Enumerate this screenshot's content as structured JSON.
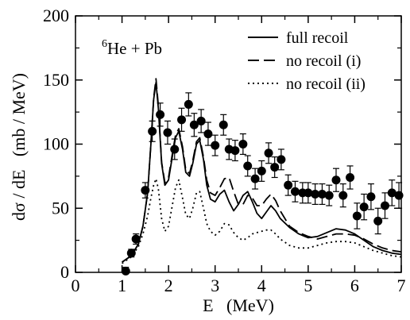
{
  "chart_data": {
    "type": "line",
    "title": "",
    "annotation": {
      "sup": "6",
      "text": "He + Pb"
    },
    "xlabel": "E   (MeV)",
    "ylabel": "dσ / dE   (mb / MeV)",
    "xlim": [
      0,
      7
    ],
    "ylim": [
      0,
      200
    ],
    "xticks": [
      0,
      1,
      2,
      3,
      4,
      5,
      6,
      7
    ],
    "yticks": [
      0,
      50,
      100,
      150,
      200
    ],
    "legend_position": "top-right",
    "series": [
      {
        "name": "full recoil",
        "style": "solid",
        "x": [
          1.0,
          1.2,
          1.35,
          1.45,
          1.55,
          1.62,
          1.68,
          1.73,
          1.78,
          1.85,
          1.92,
          2.0,
          2.08,
          2.15,
          2.22,
          2.3,
          2.37,
          2.45,
          2.52,
          2.6,
          2.67,
          2.75,
          2.82,
          2.9,
          3.0,
          3.1,
          3.2,
          3.3,
          3.4,
          3.5,
          3.6,
          3.7,
          3.8,
          3.9,
          4.0,
          4.1,
          4.2,
          4.3,
          4.4,
          4.6,
          4.8,
          5.0,
          5.2,
          5.4,
          5.6,
          5.8,
          6.0,
          6.2,
          6.4,
          6.6,
          6.8,
          7.0
        ],
        "y": [
          8,
          13,
          22,
          36,
          62,
          100,
          135,
          148,
          128,
          85,
          68,
          72,
          90,
          105,
          110,
          96,
          78,
          75,
          85,
          100,
          103,
          88,
          68,
          57,
          55,
          61,
          64,
          55,
          48,
          53,
          60,
          63,
          55,
          46,
          42,
          47,
          52,
          48,
          42,
          35,
          30,
          27,
          28,
          31,
          34,
          33,
          30,
          25,
          20,
          17,
          15,
          14
        ]
      },
      {
        "name": "no recoil (i)",
        "style": "dashed",
        "x": [
          1.0,
          1.2,
          1.35,
          1.45,
          1.55,
          1.62,
          1.68,
          1.73,
          1.78,
          1.85,
          1.92,
          2.0,
          2.08,
          2.15,
          2.22,
          2.3,
          2.37,
          2.45,
          2.52,
          2.6,
          2.67,
          2.75,
          2.82,
          2.9,
          3.0,
          3.1,
          3.2,
          3.3,
          3.4,
          3.5,
          3.6,
          3.7,
          3.8,
          3.9,
          4.0,
          4.1,
          4.2,
          4.3,
          4.4,
          4.6,
          4.8,
          5.0,
          5.2,
          5.4,
          5.6,
          5.8,
          6.0,
          6.2,
          6.4,
          6.6,
          6.8,
          7.0
        ],
        "y": [
          8,
          13,
          22,
          36,
          62,
          100,
          136,
          151,
          130,
          86,
          70,
          74,
          92,
          107,
          112,
          98,
          80,
          77,
          87,
          102,
          105,
          90,
          72,
          62,
          60,
          66,
          73,
          74,
          63,
          53,
          53,
          60,
          58,
          52,
          52,
          57,
          61,
          56,
          48,
          36,
          31,
          28,
          26,
          28,
          30,
          30,
          29,
          26,
          22,
          19,
          17,
          16
        ]
      },
      {
        "name": "no recoil (ii)",
        "style": "dotted",
        "x": [
          1.0,
          1.2,
          1.35,
          1.45,
          1.55,
          1.62,
          1.68,
          1.73,
          1.78,
          1.85,
          1.92,
          2.0,
          2.08,
          2.15,
          2.22,
          2.3,
          2.37,
          2.45,
          2.52,
          2.6,
          2.67,
          2.75,
          2.82,
          2.9,
          3.0,
          3.1,
          3.2,
          3.3,
          3.4,
          3.5,
          3.6,
          3.7,
          3.8,
          3.9,
          4.0,
          4.1,
          4.2,
          4.3,
          4.4,
          4.6,
          4.8,
          5.0,
          5.2,
          5.4,
          5.6,
          5.8,
          6.0,
          6.2,
          6.4,
          6.6,
          6.8,
          7.0
        ],
        "y": [
          7,
          12,
          20,
          30,
          44,
          58,
          68,
          73,
          65,
          42,
          32,
          36,
          52,
          66,
          72,
          58,
          45,
          42,
          50,
          62,
          63,
          50,
          38,
          32,
          29,
          32,
          38,
          37,
          31,
          27,
          25,
          27,
          30,
          31,
          32,
          33,
          33,
          30,
          26,
          21,
          19,
          19,
          21,
          23,
          24,
          24,
          23,
          20,
          17,
          15,
          13,
          12
        ]
      }
    ],
    "data_points": {
      "name": "data",
      "x": [
        1.08,
        1.2,
        1.3,
        1.5,
        1.65,
        1.82,
        1.98,
        2.13,
        2.28,
        2.43,
        2.55,
        2.7,
        2.85,
        3.0,
        3.18,
        3.3,
        3.43,
        3.6,
        3.7,
        3.86,
        4.0,
        4.15,
        4.28,
        4.42,
        4.57,
        4.72,
        4.88,
        5.0,
        5.15,
        5.3,
        5.45,
        5.6,
        5.75,
        5.9,
        6.05,
        6.2,
        6.35,
        6.5,
        6.65,
        6.8,
        6.95
      ],
      "y": [
        1,
        15,
        26,
        64,
        110,
        123,
        109,
        96,
        119,
        131,
        115,
        118,
        108,
        99,
        115,
        96,
        95,
        100,
        83,
        73,
        79,
        93,
        82,
        88,
        68,
        63,
        62,
        62,
        61,
        61,
        60,
        72,
        60,
        74,
        44,
        51,
        59,
        40,
        52,
        62,
        60
      ],
      "err": [
        3,
        3,
        4,
        6,
        8,
        9,
        9,
        8,
        9,
        9,
        9,
        9,
        9,
        8,
        8,
        8,
        8,
        8,
        8,
        8,
        8,
        8,
        8,
        8,
        8,
        8,
        8,
        8,
        8,
        8,
        8,
        9,
        9,
        9,
        10,
        10,
        10,
        10,
        10,
        10,
        10
      ]
    }
  }
}
